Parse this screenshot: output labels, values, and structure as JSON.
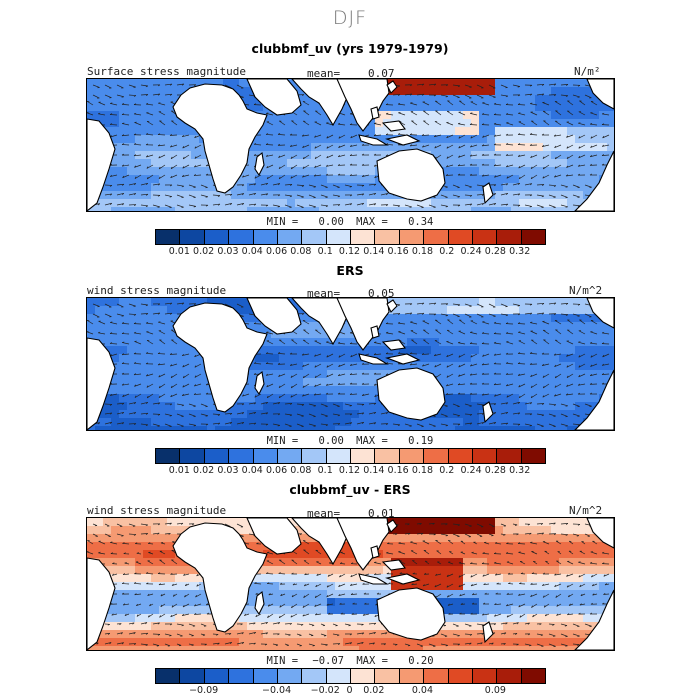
{
  "page_title": "DJF",
  "colors": {
    "blues": [
      "#08306b",
      "#0d47a1",
      "#1b5ec9",
      "#2e72de",
      "#4a8cec",
      "#73a9f2",
      "#a3c7f7",
      "#d4e5fb"
    ],
    "reds": [
      "#fde3d4",
      "#f9c1a3",
      "#f59a72",
      "#ee6e46",
      "#e04a24",
      "#c93214",
      "#a81d0a",
      "#7f0b00"
    ],
    "land": "#ffffff",
    "coast": "#000000"
  },
  "chart_data": [
    {
      "type": "heatmap",
      "title": "clubbmf_uv (yrs 1979-1979)",
      "variable": "Surface stress magnitude",
      "mean_label": "mean=",
      "mean": "0.07",
      "units": "N/m²",
      "min_label": "MIN =",
      "min": "0.00",
      "max_label": "MAX =",
      "max": "0.34",
      "colorbar_levels": [
        "0.01",
        "0.02",
        "0.03",
        "0.04",
        "0.06",
        "0.08",
        "0.1",
        "0.12",
        "0.14",
        "0.16",
        "0.18",
        "0.2",
        "0.24",
        "0.28",
        "0.32"
      ],
      "colorbar_scale": "sequential"
    },
    {
      "type": "heatmap",
      "title": "ERS",
      "variable": "wind stress magnitude",
      "mean_label": "mean=",
      "mean": "0.05",
      "units": "N/m^2",
      "min_label": "MIN =",
      "min": "0.00",
      "max_label": "MAX =",
      "max": "0.19",
      "colorbar_levels": [
        "0.01",
        "0.02",
        "0.03",
        "0.04",
        "0.06",
        "0.08",
        "0.1",
        "0.12",
        "0.14",
        "0.16",
        "0.18",
        "0.2",
        "0.24",
        "0.28",
        "0.32"
      ],
      "colorbar_scale": "sequential"
    },
    {
      "type": "heatmap",
      "title": "clubbmf_uv - ERS",
      "variable": "wind stress magnitude",
      "mean_label": "mean=",
      "mean": "0.01",
      "units": "N/m^2",
      "min_label": "MIN =",
      "min": "−0.07",
      "max_label": "MAX =",
      "max": "0.20",
      "colorbar_levels": [
        "−0.09",
        "−0.04",
        "−0.02",
        "0",
        "0.02",
        "0.04",
        "0.09"
      ],
      "colorbar_scale": "diverging"
    }
  ]
}
